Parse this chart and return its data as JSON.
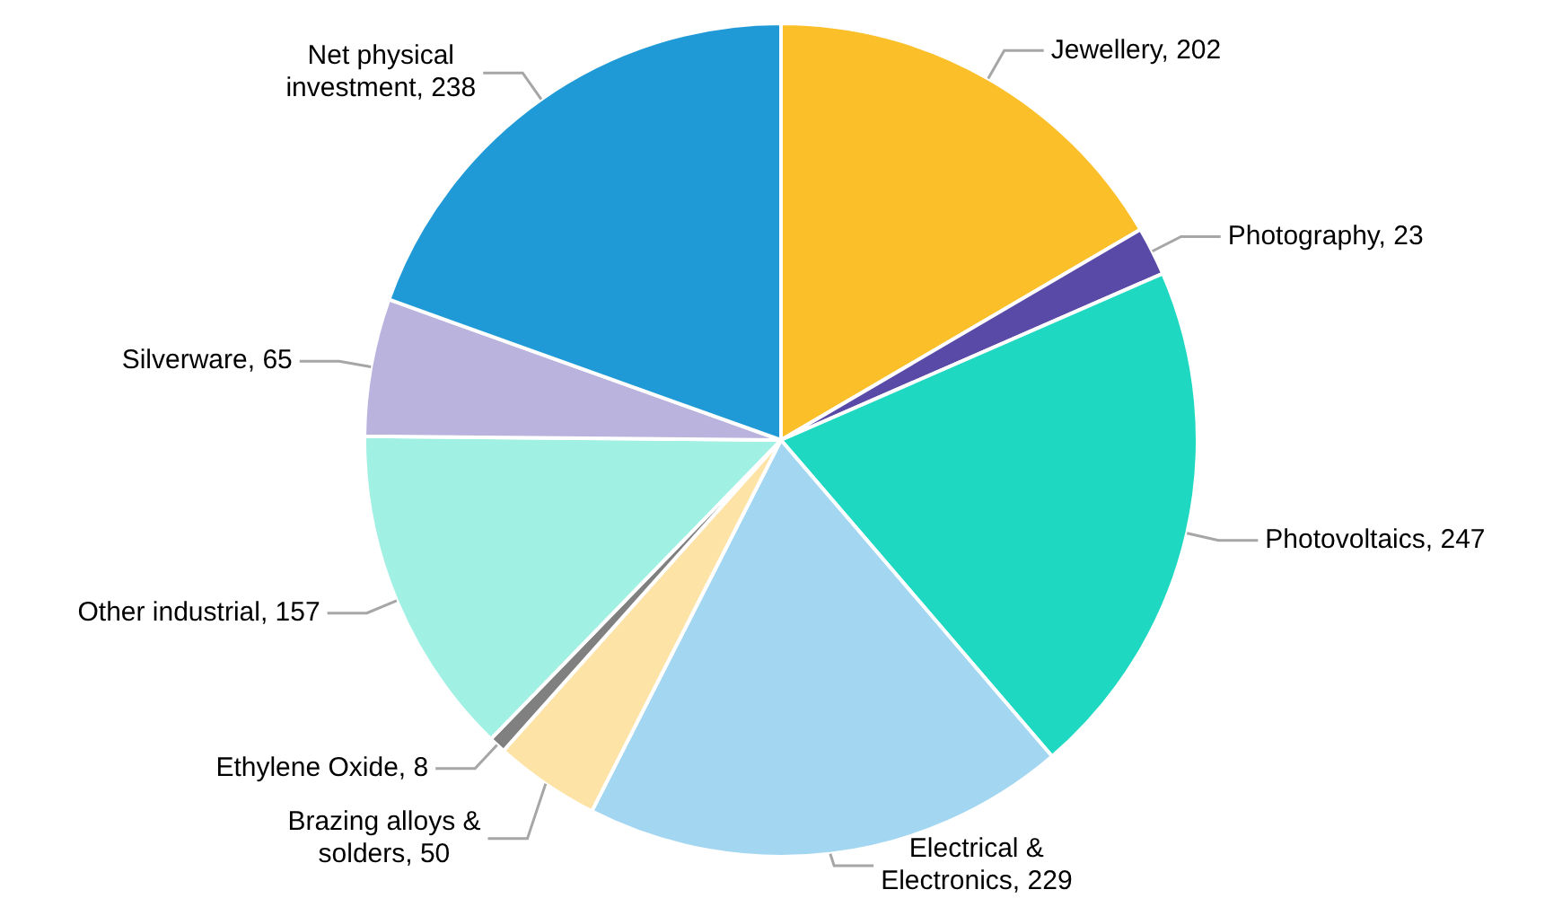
{
  "chart_data": {
    "type": "pie",
    "categories": [
      "Jewellery, 202",
      "Photography, 23",
      "Photovoltaics, 247",
      "Electrical & Electronics, 229",
      "Brazing alloys & solders, 50",
      "Ethylene Oxide, 8",
      "Other industrial, 157",
      "Silverware, 65",
      "Net physical investment, 238"
    ],
    "values": [
      202,
      23,
      247,
      229,
      50,
      8,
      157,
      65,
      238
    ],
    "colors": [
      "#fbbf2a",
      "#5a4aa8",
      "#1fd8c1",
      "#a3d7f1",
      "#fde3a5",
      "#808080",
      "#a0f0e3",
      "#b9b3de",
      "#1f9ad6"
    ]
  }
}
